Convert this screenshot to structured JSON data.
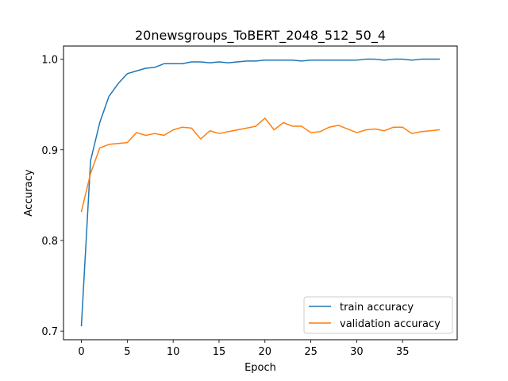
{
  "chart_data": {
    "type": "line",
    "title": "20newsgroups_ToBERT_2048_512_50_4",
    "xlabel": "Epoch",
    "ylabel": "Accuracy",
    "xlim": [
      -1.95,
      40.95
    ],
    "ylim": [
      0.6905,
      1.0145
    ],
    "xticks": [
      0,
      5,
      10,
      15,
      20,
      25,
      30,
      35
    ],
    "yticks": [
      0.7,
      0.8,
      0.9,
      1.0
    ],
    "ytick_labels": [
      "0.7",
      "0.8",
      "0.9",
      "1.0"
    ],
    "grid": false,
    "legend_position": "lower-right",
    "x": [
      0,
      1,
      2,
      3,
      4,
      5,
      6,
      7,
      8,
      9,
      10,
      11,
      12,
      13,
      14,
      15,
      16,
      17,
      18,
      19,
      20,
      21,
      22,
      23,
      24,
      25,
      26,
      27,
      28,
      29,
      30,
      31,
      32,
      33,
      34,
      35,
      36,
      37,
      38,
      39
    ],
    "series": [
      {
        "name": "train accuracy",
        "color": "#1f77b4",
        "values": [
          0.706,
          0.888,
          0.93,
          0.959,
          0.973,
          0.984,
          0.987,
          0.99,
          0.991,
          0.995,
          0.995,
          0.995,
          0.997,
          0.997,
          0.996,
          0.997,
          0.996,
          0.997,
          0.998,
          0.998,
          0.999,
          0.999,
          0.999,
          0.999,
          0.998,
          0.999,
          0.999,
          0.999,
          0.999,
          0.999,
          0.999,
          1.0,
          1.0,
          0.999,
          1.0,
          1.0,
          0.999,
          1.0,
          1.0,
          1.0
        ]
      },
      {
        "name": "validation accuracy",
        "color": "#ff7f0e",
        "values": [
          0.832,
          0.874,
          0.902,
          0.906,
          0.907,
          0.908,
          0.919,
          0.916,
          0.918,
          0.916,
          0.922,
          0.925,
          0.924,
          0.912,
          0.921,
          0.918,
          0.92,
          0.922,
          0.924,
          0.926,
          0.935,
          0.922,
          0.93,
          0.926,
          0.926,
          0.919,
          0.92,
          0.925,
          0.927,
          0.923,
          0.919,
          0.922,
          0.923,
          0.921,
          0.925,
          0.925,
          0.918,
          0.92,
          0.921,
          0.922
        ]
      }
    ]
  }
}
